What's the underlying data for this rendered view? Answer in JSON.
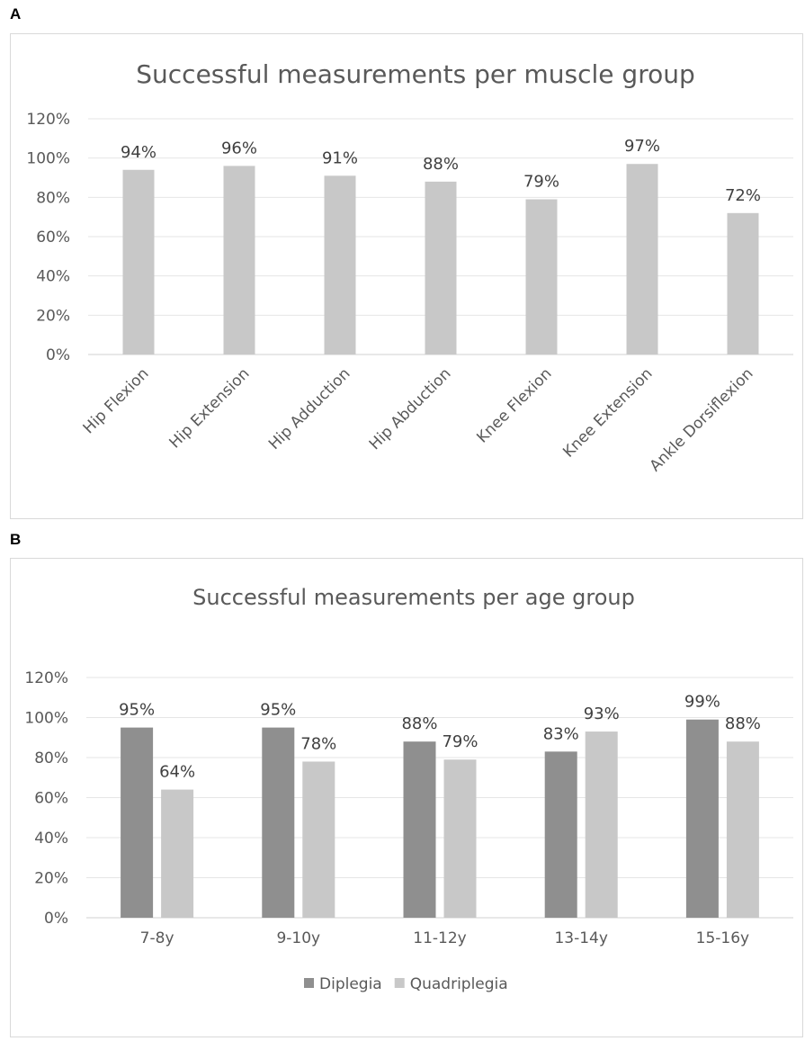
{
  "panels": [
    {
      "letter": "A"
    },
    {
      "letter": "B"
    }
  ],
  "chart_data": [
    {
      "type": "bar",
      "title": "Successful measurements per muscle group",
      "categories": [
        "Hip Flexion",
        "Hip Extension",
        "Hip Adduction",
        "Hip Abduction",
        "Knee Flexion",
        "Knee Extension",
        "Ankle Dorsiflexion"
      ],
      "values": [
        94,
        96,
        91,
        88,
        79,
        97,
        72
      ],
      "data_labels": [
        "94%",
        "96%",
        "91%",
        "88%",
        "79%",
        "97%",
        "72%"
      ],
      "ylim": [
        0,
        120
      ],
      "yticks": [
        "0%",
        "20%",
        "40%",
        "60%",
        "80%",
        "100%",
        "120%"
      ],
      "grid": true,
      "color": "#c8c8c8"
    },
    {
      "type": "bar",
      "title": "Successful measurements per age group",
      "categories": [
        "7-8y",
        "9-10y",
        "11-12y",
        "13-14y",
        "15-16y"
      ],
      "series": [
        {
          "name": "Diplegia",
          "values": [
            95,
            95,
            88,
            83,
            99
          ],
          "data_labels": [
            "95%",
            "95%",
            "88%",
            "83%",
            "99%"
          ],
          "color": "#8f8f8f"
        },
        {
          "name": "Quadriplegia",
          "values": [
            64,
            78,
            79,
            93,
            88
          ],
          "data_labels": [
            "64%",
            "78%",
            "79%",
            "93%",
            "88%"
          ],
          "color": "#c8c8c8"
        }
      ],
      "ylim": [
        0,
        120
      ],
      "yticks": [
        "0%",
        "20%",
        "40%",
        "60%",
        "80%",
        "100%",
        "120%"
      ],
      "grid": true,
      "legend": "bottom"
    }
  ]
}
